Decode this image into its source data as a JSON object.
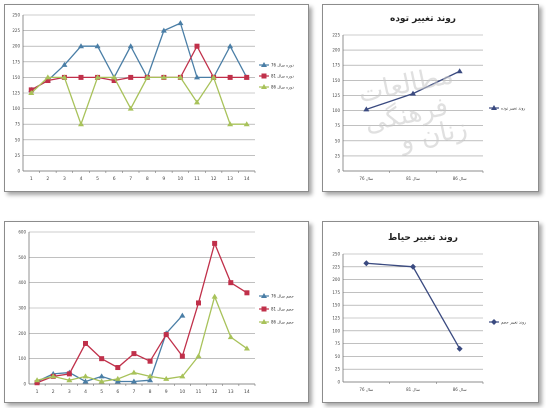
{
  "watermark": {
    "line1": "مطالعات فرهنگی",
    "line2": "زنان و"
  },
  "chart_data": [
    {
      "type": "line",
      "title": "",
      "categories": [
        "1",
        "2",
        "3",
        "4",
        "5",
        "6",
        "7",
        "8",
        "9",
        "10",
        "11",
        "12",
        "13",
        "14"
      ],
      "ylim": [
        0,
        250
      ],
      "yticks": [
        "0",
        "25",
        "50",
        "75",
        "100",
        "125",
        "150",
        "175",
        "200",
        "225",
        "250"
      ],
      "grid": true,
      "legend_position": "right",
      "series": [
        {
          "name": "دوره سال 76",
          "color": "#4a7ea6",
          "marker": "triangle",
          "values": [
            130,
            145,
            170,
            200,
            200,
            150,
            200,
            150,
            225,
            237,
            150,
            150,
            200,
            150
          ]
        },
        {
          "name": "دوره سال 81",
          "color": "#c0304a",
          "marker": "square",
          "values": [
            130,
            145,
            150,
            150,
            150,
            145,
            150,
            150,
            150,
            150,
            200,
            150,
            150,
            150
          ]
        },
        {
          "name": "دوره سال 86",
          "color": "#a8c25a",
          "marker": "triangle",
          "values": [
            125,
            150,
            150,
            75,
            150,
            150,
            100,
            150,
            150,
            150,
            110,
            150,
            75,
            75
          ]
        }
      ]
    },
    {
      "type": "line",
      "title": "روند تغییر توده",
      "categories": [
        "سال 76",
        "سال 81",
        "سال 86"
      ],
      "ylim": [
        0,
        225
      ],
      "yticks": [
        "0",
        "25",
        "50",
        "75",
        "100",
        "125",
        "150",
        "175",
        "200",
        "225"
      ],
      "grid": true,
      "legend_position": "right",
      "series": [
        {
          "name": "روند تغییر توده",
          "color": "#3a4a80",
          "marker": "triangle",
          "values": [
            102,
            128,
            165
          ]
        }
      ]
    },
    {
      "type": "line",
      "title": "",
      "categories": [
        "1",
        "2",
        "3",
        "4",
        "5",
        "6",
        "7",
        "8",
        "9",
        "10",
        "11",
        "12",
        "13",
        "14"
      ],
      "ylim": [
        0,
        600
      ],
      "yticks": [
        "0",
        "100",
        "200",
        "300",
        "400",
        "500",
        "600"
      ],
      "grid": true,
      "legend_position": "right",
      "series": [
        {
          "name": "حجم سال 76",
          "color": "#4a7ea6",
          "marker": "triangle",
          "values": [
            10,
            40,
            45,
            10,
            30,
            10,
            10,
            15,
            200,
            270,
            null,
            null,
            null,
            null
          ]
        },
        {
          "name": "حجم سال 81",
          "color": "#c0304a",
          "marker": "square",
          "values": [
            5,
            30,
            40,
            160,
            100,
            65,
            120,
            90,
            195,
            110,
            320,
            555,
            400,
            360
          ]
        },
        {
          "name": "حجم سال 86",
          "color": "#a8c25a",
          "marker": "triangle",
          "values": [
            15,
            30,
            15,
            30,
            10,
            20,
            45,
            30,
            20,
            30,
            110,
            345,
            185,
            140
          ]
        }
      ]
    },
    {
      "type": "line",
      "title": "روند تغییر حیاط",
      "categories": [
        "سال 76",
        "سال 81",
        "سال 86"
      ],
      "ylim": [
        0,
        250
      ],
      "yticks": [
        "0",
        "25",
        "50",
        "75",
        "100",
        "125",
        "150",
        "175",
        "200",
        "225",
        "250"
      ],
      "grid": true,
      "legend_position": "right",
      "series": [
        {
          "name": "روند تغییر حجم",
          "color": "#3a4a80",
          "marker": "diamond",
          "values": [
            232,
            225,
            65
          ]
        }
      ]
    }
  ]
}
